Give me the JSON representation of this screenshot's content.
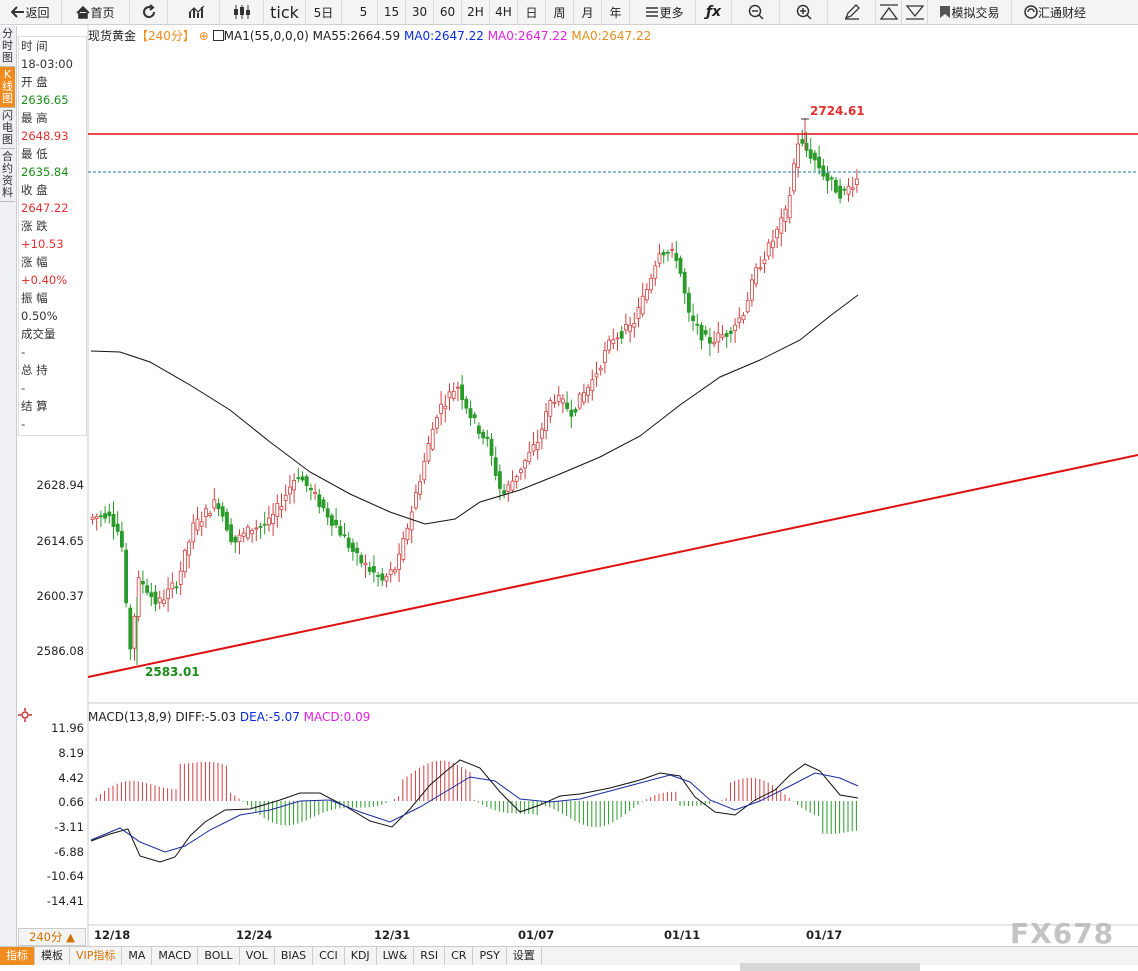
{
  "toolbar": {
    "back": "返回",
    "home": "首页",
    "tick": "tick",
    "fiveday": "5日",
    "p5": "5",
    "p15": "15",
    "p30": "30",
    "p60": "60",
    "p2h": "2H",
    "p4h": "4H",
    "day": "日",
    "week": "周",
    "month": "月",
    "year": "年",
    "more": "更多",
    "sim_trade": "模拟交易",
    "brand": "汇通财经"
  },
  "left_tabs": [
    "分时图",
    "K线图",
    "闪电图",
    "合约资料"
  ],
  "info_panel": [
    {
      "label": "时 间",
      "value": "18-03:00",
      "color": "dark"
    },
    {
      "label": "开 盘",
      "value": "2636.65",
      "color": "green"
    },
    {
      "label": "最 高",
      "value": "2648.93",
      "color": "red"
    },
    {
      "label": "最 低",
      "value": "2635.84",
      "color": "green"
    },
    {
      "label": "收 盘",
      "value": "2647.22",
      "color": "red"
    },
    {
      "label": "涨 跌",
      "value": "+10.53",
      "color": "red"
    },
    {
      "label": "涨 幅",
      "value": "+0.40%",
      "color": "red"
    },
    {
      "label": "振 幅",
      "value": "0.50%",
      "color": "dark"
    },
    {
      "label": "成交量",
      "value": "-",
      "color": "dark"
    },
    {
      "label": "总 持",
      "value": "-",
      "color": "dark"
    },
    {
      "label": "结 算",
      "value": "-",
      "color": "dark"
    }
  ],
  "legend": {
    "symbol": "现货黄金",
    "period": "【240分】",
    "ma1": "MA1(55,0,0,0)",
    "ma55": "MA55:2664.59",
    "ma0a": "MA0:2647.22",
    "ma0b": "MA0:2647.22",
    "ma0c": "MA0:2647.22"
  },
  "macd_legend": {
    "name": "MACD(13,8,9)",
    "diff": "DIFF:-5.03",
    "dea": "DEA:-5.07",
    "macd": "MACD:0.09"
  },
  "annotations": {
    "high": "2724.61",
    "low": "2583.01"
  },
  "colors": {
    "up": "#d04040",
    "down": "#2a9a2a",
    "ma": "#111111",
    "trend": "#e01010",
    "accent": "#f08c1e"
  },
  "chart_data": [
    {
      "type": "candlestick",
      "title": "现货黄金 240分",
      "x_labels": [
        "12/18",
        "12/24",
        "12/31",
        "01/07",
        "01/11",
        "01/17"
      ],
      "y_ticks": [
        "2628.94",
        "2614.65",
        "2600.37",
        "2586.08"
      ],
      "price_high_marker": 2724.61,
      "price_low_marker": 2583.01,
      "lines": [
        "MA55",
        "resistance (horizontal)",
        "ascending support trendline",
        "last close (dashed)"
      ]
    },
    {
      "type": "bar",
      "title": "MACD(13,8,9)",
      "y_ticks": [
        "11.96",
        "8.19",
        "4.42",
        "0.66",
        "-3.11",
        "-6.88",
        "-10.64",
        "-14.41"
      ],
      "series": [
        {
          "name": "DIFF",
          "last": -5.03
        },
        {
          "name": "DEA",
          "last": -5.07
        },
        {
          "name": "MACD",
          "last": 0.09
        }
      ]
    }
  ],
  "period_button": "240分 ▲",
  "bottom_tabs": [
    "指标",
    "模板",
    "VIP指标",
    "MA",
    "MACD",
    "BOLL",
    "VOL",
    "BIAS",
    "CCI",
    "KDJ",
    "LW&",
    "RSI",
    "CR",
    "PSY",
    "设置"
  ],
  "watermark": "FX678"
}
